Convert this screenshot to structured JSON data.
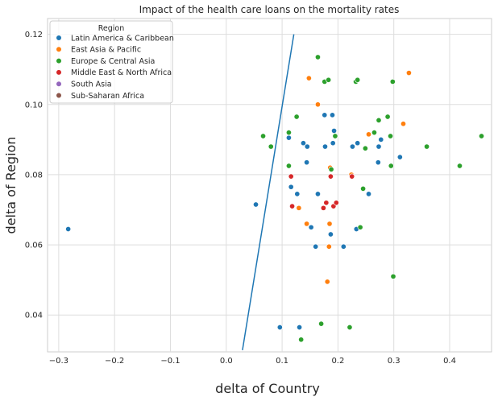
{
  "chart_data": {
    "type": "scatter",
    "title": "Impact of the health care loans on the mortality rates",
    "xlabel": "delta of Country",
    "ylabel": "delta of Region",
    "xlim": [
      -0.32,
      0.475
    ],
    "ylim": [
      0.0295,
      0.1245
    ],
    "xticks": [
      -0.3,
      -0.2,
      -0.1,
      0.0,
      0.1,
      0.2,
      0.3,
      0.4
    ],
    "xtick_labels": [
      "−0.3",
      "−0.2",
      "−0.1",
      "0.0",
      "0.1",
      "0.2",
      "0.3",
      "0.4"
    ],
    "yticks": [
      0.04,
      0.06,
      0.08,
      0.1,
      0.12
    ],
    "ytick_labels": [
      "0.04",
      "0.06",
      "0.08",
      "0.10",
      "0.12"
    ],
    "grid": true,
    "legend": {
      "title": "Region",
      "placement": "upper-left"
    },
    "series": [
      {
        "name": "Latin America & Caribbean",
        "color": "#1f77b4",
        "points": [
          [
            -0.283,
            0.0645
          ],
          [
            0.053,
            0.0715
          ],
          [
            0.096,
            0.0365
          ],
          [
            0.112,
            0.0905
          ],
          [
            0.116,
            0.0765
          ],
          [
            0.127,
            0.0745
          ],
          [
            0.131,
            0.0365
          ],
          [
            0.138,
            0.089
          ],
          [
            0.144,
            0.0835
          ],
          [
            0.145,
            0.088
          ],
          [
            0.152,
            0.065
          ],
          [
            0.16,
            0.0595
          ],
          [
            0.164,
            0.0745
          ],
          [
            0.176,
            0.097
          ],
          [
            0.177,
            0.088
          ],
          [
            0.187,
            0.063
          ],
          [
            0.19,
            0.097
          ],
          [
            0.191,
            0.089
          ],
          [
            0.193,
            0.0925
          ],
          [
            0.21,
            0.0595
          ],
          [
            0.226,
            0.088
          ],
          [
            0.233,
            0.0645
          ],
          [
            0.235,
            0.089
          ],
          [
            0.255,
            0.0745
          ],
          [
            0.272,
            0.0835
          ],
          [
            0.273,
            0.088
          ],
          [
            0.277,
            0.09
          ],
          [
            0.311,
            0.085
          ]
        ]
      },
      {
        "name": "East Asia & Pacific",
        "color": "#ff7f0e",
        "points": [
          [
            0.13,
            0.0705
          ],
          [
            0.148,
            0.1075
          ],
          [
            0.144,
            0.066
          ],
          [
            0.164,
            0.1
          ],
          [
            0.181,
            0.0495
          ],
          [
            0.184,
            0.0595
          ],
          [
            0.185,
            0.066
          ],
          [
            0.186,
            0.082
          ],
          [
            0.224,
            0.08
          ],
          [
            0.255,
            0.0915
          ],
          [
            0.317,
            0.0945
          ],
          [
            0.327,
            0.109
          ]
        ]
      },
      {
        "name": "Europe & Central Asia",
        "color": "#2ca02c",
        "points": [
          [
            0.066,
            0.091
          ],
          [
            0.08,
            0.088
          ],
          [
            0.112,
            0.092
          ],
          [
            0.112,
            0.0825
          ],
          [
            0.126,
            0.0965
          ],
          [
            0.134,
            0.033
          ],
          [
            0.164,
            0.1135
          ],
          [
            0.17,
            0.0375
          ],
          [
            0.176,
            0.1065
          ],
          [
            0.183,
            0.107
          ],
          [
            0.188,
            0.0815
          ],
          [
            0.195,
            0.091
          ],
          [
            0.221,
            0.0365
          ],
          [
            0.232,
            0.1065
          ],
          [
            0.235,
            0.107
          ],
          [
            0.24,
            0.065
          ],
          [
            0.245,
            0.076
          ],
          [
            0.249,
            0.0875
          ],
          [
            0.265,
            0.092
          ],
          [
            0.273,
            0.0955
          ],
          [
            0.289,
            0.0965
          ],
          [
            0.294,
            0.091
          ],
          [
            0.295,
            0.0825
          ],
          [
            0.298,
            0.1065
          ],
          [
            0.299,
            0.051
          ],
          [
            0.359,
            0.088
          ],
          [
            0.418,
            0.0825
          ],
          [
            0.457,
            0.091
          ]
        ]
      },
      {
        "name": "Middle East & North Africa",
        "color": "#d62728",
        "points": [
          [
            0.116,
            0.0795
          ],
          [
            0.118,
            0.071
          ],
          [
            0.174,
            0.0705
          ],
          [
            0.179,
            0.072
          ],
          [
            0.187,
            0.0795
          ],
          [
            0.192,
            0.071
          ],
          [
            0.197,
            0.072
          ],
          [
            0.225,
            0.0795
          ]
        ]
      },
      {
        "name": "South Asia",
        "color": "#9467bd",
        "points": []
      },
      {
        "name": "Sub-Saharan Africa",
        "color": "#8c564b",
        "points": []
      }
    ],
    "line": {
      "color": "#1f77b4",
      "points": [
        [
          0.029,
          0.03
        ],
        [
          0.121,
          0.12
        ]
      ]
    }
  }
}
